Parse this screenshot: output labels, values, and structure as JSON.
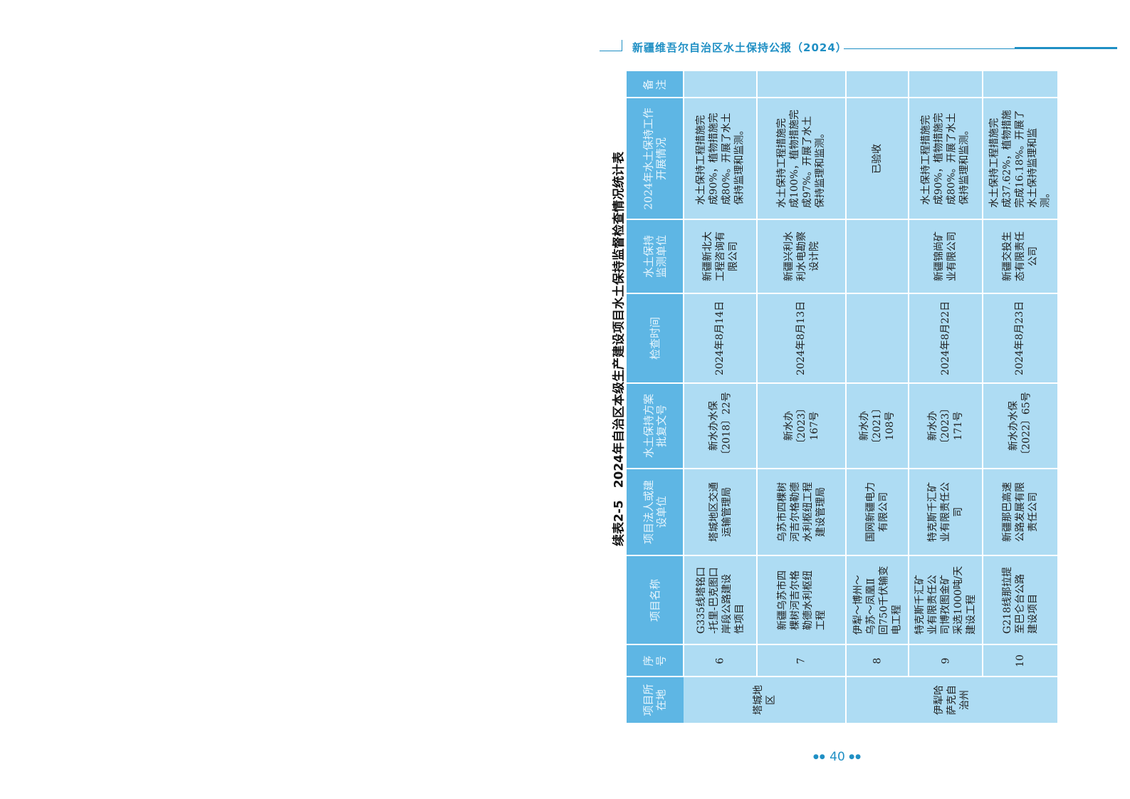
{
  "header": {
    "title": "新疆维吾尔自治区水土保持公报（2024）",
    "accent_color": "#1f8fc4"
  },
  "caption": "续表2-5　2024年自治区本级生产建设项目水土保持监督检查情况统计表",
  "table": {
    "header_color": "#5eb6e4",
    "body_color": "#aedcf3",
    "headers": {
      "region": "项目所\n在地",
      "seq": "序\n号",
      "name": "项目名称",
      "owner": "项目法人或建\n设单位",
      "approval": "水土保持方案\n批复文号",
      "date": "检查时间",
      "monitor": "水土保持\n监测单位",
      "status": "2024年水土保持工作\n开展情况",
      "note": "备\n注"
    },
    "regions": [
      {
        "label": "塔城地\n区"
      },
      {
        "label": "伊犁哈\n萨克自\n治州"
      }
    ],
    "rows": [
      {
        "seq": "6",
        "name": "G335线塔铭口\n-托里-巴克图口\n岸段公路建设\n性项目",
        "owner": "塔城地区交通\n运输管理局",
        "approval": "新水办水保\n〔2018〕22号",
        "date": "2024年8月14日",
        "monitor": "新疆新北大\n工程咨询有\n限公司",
        "status": "水土保持工程措施完\n成90%，植物措施完\n成80%。开展了水土\n保持监理和监测。",
        "note": ""
      },
      {
        "seq": "7",
        "name": "新疆乌苏市四\n棵树河吉尔格\n勒德水利枢纽\n工程",
        "owner": "乌苏市四棵树\n河吉尔格勒德\n水利枢纽工程\n建设管理局",
        "approval": "新水办\n〔2023〕\n167号",
        "date": "2024年8月13日",
        "monitor": "新疆兴利水\n利水电勘察\n设计院",
        "status": "水土保持工程措施完\n成100%，植物措施完\n成97%。开展了水土\n保持监理和监测。",
        "note": ""
      },
      {
        "seq": "8",
        "name": "伊犁～博州～\n乌苏～凤凰Ⅱ\n回750千伏输变\n电工程",
        "owner": "国网新疆电力\n有限公司",
        "approval": "新水办\n〔2021〕\n108号",
        "date": "",
        "monitor": "",
        "status": "已验收",
        "note": ""
      },
      {
        "seq": "9",
        "name": "特克斯千汇矿\n业有限责任公\n司博孜图金矿\n采选1000吨/天\n建设工程",
        "owner": "特克斯千汇矿\n业有限责任公\n司",
        "approval": "新水办\n〔2023〕\n171号",
        "date": "2024年8月22日",
        "monitor": "新疆锦尚矿\n业有限公司",
        "status": "水土保持工程措施完\n成90%，植物措施完\n成80%。开展了水土\n保持监理和监测。",
        "note": ""
      },
      {
        "seq": "10",
        "name": "G218线那拉提\n至巴仑台公路\n建设项目",
        "owner": "新疆那巴高速\n公路发展有限\n责任公司",
        "approval": "新水办水保\n〔2022〕65号",
        "date": "2024年8月23日",
        "monitor": "新疆交投生\n态有限责任\n公司",
        "status": "水土保持工程措施完\n成37.62%，植物措施\n完成16.18%。开展了\n水土保持监理和监\n测。",
        "note": ""
      }
    ]
  },
  "page_number": "40"
}
